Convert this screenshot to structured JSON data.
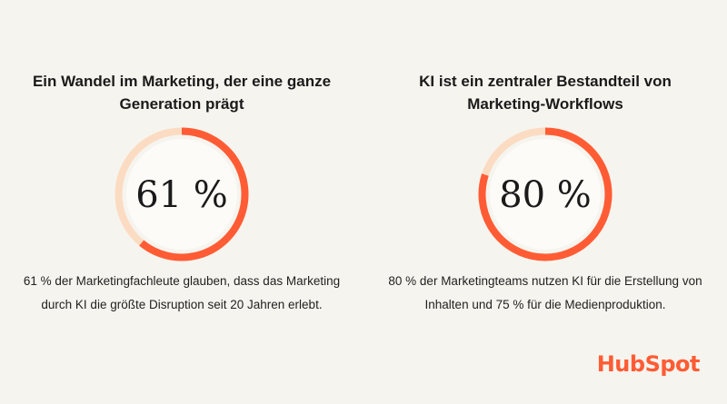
{
  "chart_data": [
    {
      "type": "pie",
      "title": "Ein Wandel im Marketing, der eine ganze Generation prägt",
      "values": [
        61
      ],
      "max": 100,
      "value_label": "61 %",
      "caption": "61 % der Marketingfachleute glauben, dass das Marketing durch KI die größte Disruption seit 20 Jahren erlebt."
    },
    {
      "type": "pie",
      "title": "KI ist ein zentraler Bestandteil von Marketing-Workflows",
      "values": [
        80
      ],
      "max": 100,
      "value_label": "80 %",
      "caption": "80 % der Marketingteams nutzen KI für die Erstellung von Inhalten und 75 % für die Medienproduktion."
    }
  ],
  "colors": {
    "background": "#f6f4ee",
    "accent": "#ff5c35",
    "track": "#fbdcc2",
    "inner": "#fdfbf7"
  },
  "logo": {
    "text": "HubSpot"
  }
}
